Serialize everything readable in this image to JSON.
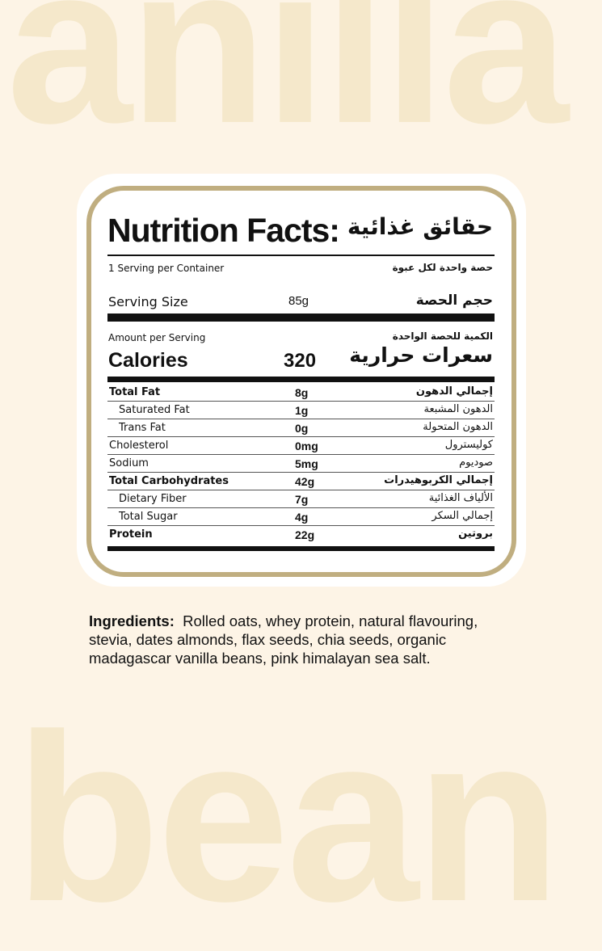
{
  "background": {
    "top_word": "anilla",
    "bottom_word": "bean",
    "color": "#f5e8cb",
    "page_color": "#fdf4e6",
    "border_color": "#c0ae80"
  },
  "label": {
    "title_en": "Nutrition Facts:",
    "title_ar": "حقائق غذائية",
    "servings_en": "1 Serving per Container",
    "servings_ar": "حصة واحدة لكل عبوة",
    "serving_size_en": "Serving Size",
    "serving_size_value": "85g",
    "serving_size_ar": "حجم الحصة",
    "amount_en": "Amount per Serving",
    "amount_ar": "الكمية للحصة الواحدة",
    "calories_en": "Calories",
    "calories_value": "320",
    "calories_ar": "سعرات حرارية",
    "rows": [
      {
        "en": "Total Fat",
        "value": "8g",
        "ar": "إجمالي الدهون"
      },
      {
        "en": "Saturated Fat",
        "value": "1g",
        "ar": "الدهون المشبعة"
      },
      {
        "en": "Trans Fat",
        "value": "0g",
        "ar": "الدهون المتحولة"
      },
      {
        "en": "Cholesterol",
        "value": "0mg",
        "ar": "كوليسترول"
      },
      {
        "en": "Sodium",
        "value": "5mg",
        "ar": "صوديوم"
      },
      {
        "en": "Total Carbohydrates",
        "value": "42g",
        "ar": "إجمالي الكربوهيدرات"
      },
      {
        "en": "Dietary Fiber",
        "value": "7g",
        "ar": "الألياف الغذائية"
      },
      {
        "en": "Total Sugar",
        "value": "4g",
        "ar": "إجمالي السكر"
      },
      {
        "en": "Protein",
        "value": "22g",
        "ar": "بروتين"
      }
    ]
  },
  "ingredients": {
    "label": "Ingredients:",
    "text": "Rolled oats, whey protein, natural flavouring, stevia, dates almonds, flax seeds, chia seeds, organic madagascar vanilla beans, pink himalayan sea salt."
  }
}
